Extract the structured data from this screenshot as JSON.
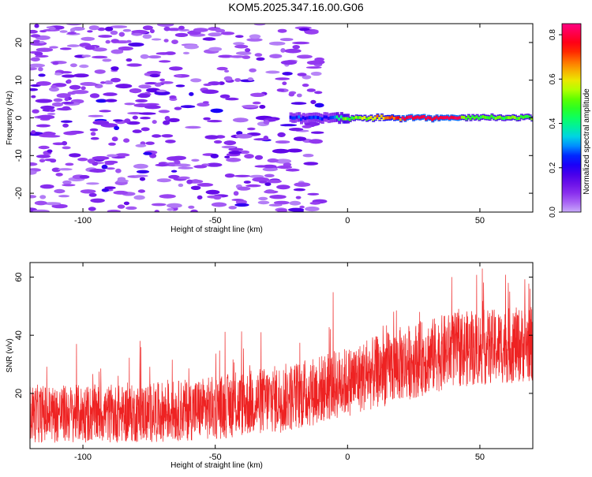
{
  "title": "KOM5.2025.347.16.00.G06",
  "chart_data": [
    {
      "type": "heatmap",
      "name": "spectrogram",
      "xlabel": "Height of straight line (km)",
      "ylabel": "Frequency (Hz)",
      "xlim": [
        -120,
        70
      ],
      "ylim": [
        -25,
        25
      ],
      "xticks": [
        -100,
        -50,
        0,
        50
      ],
      "xtick_labels": [
        "-100",
        "-50",
        "0",
        "50"
      ],
      "yticks": [
        -20,
        -10,
        0,
        10,
        20
      ],
      "ytick_labels": [
        "-20",
        "-10",
        "0",
        "10",
        "20"
      ],
      "colorbar": {
        "label": "Normalized spectral amplitude",
        "range": [
          0.0,
          0.85
        ],
        "ticks": [
          0.0,
          0.2,
          0.4,
          0.6,
          0.8
        ],
        "tick_labels": [
          "0.0",
          "0.2",
          "0.4",
          "0.6",
          "0.8"
        ]
      },
      "features": {
        "carrier_line": {
          "frequency_hz": 0,
          "x_start_km": -22,
          "x_end_km": 70,
          "peak_amplitude": 0.82,
          "peak_range_km": [
            20,
            42
          ]
        },
        "noise_region": {
          "x_start_km": -120,
          "x_end_km": -10,
          "frequency_range_hz": [
            -25,
            25
          ]
        }
      }
    },
    {
      "type": "line",
      "name": "snr",
      "xlabel": "Height of straight line (km)",
      "ylabel": "SNR (v/v)",
      "xlim": [
        -120,
        70
      ],
      "ylim": [
        1,
        65
      ],
      "xticks": [
        -100,
        -50,
        0,
        50
      ],
      "xtick_labels": [
        "-100",
        "-50",
        "0",
        "50"
      ],
      "yticks": [
        20,
        40,
        60
      ],
      "ytick_labels": [
        "20",
        "40",
        "60"
      ],
      "color": "#ee2222",
      "trend": [
        {
          "x": -120,
          "mean": 13,
          "spread": 10
        },
        {
          "x": -80,
          "mean": 13,
          "spread": 10
        },
        {
          "x": -50,
          "mean": 15,
          "spread": 11
        },
        {
          "x": -20,
          "mean": 19,
          "spread": 12
        },
        {
          "x": 0,
          "mean": 24,
          "spread": 12
        },
        {
          "x": 20,
          "mean": 30,
          "spread": 13
        },
        {
          "x": 40,
          "mean": 35,
          "spread": 13
        },
        {
          "x": 70,
          "mean": 37,
          "spread": 13
        }
      ]
    }
  ]
}
